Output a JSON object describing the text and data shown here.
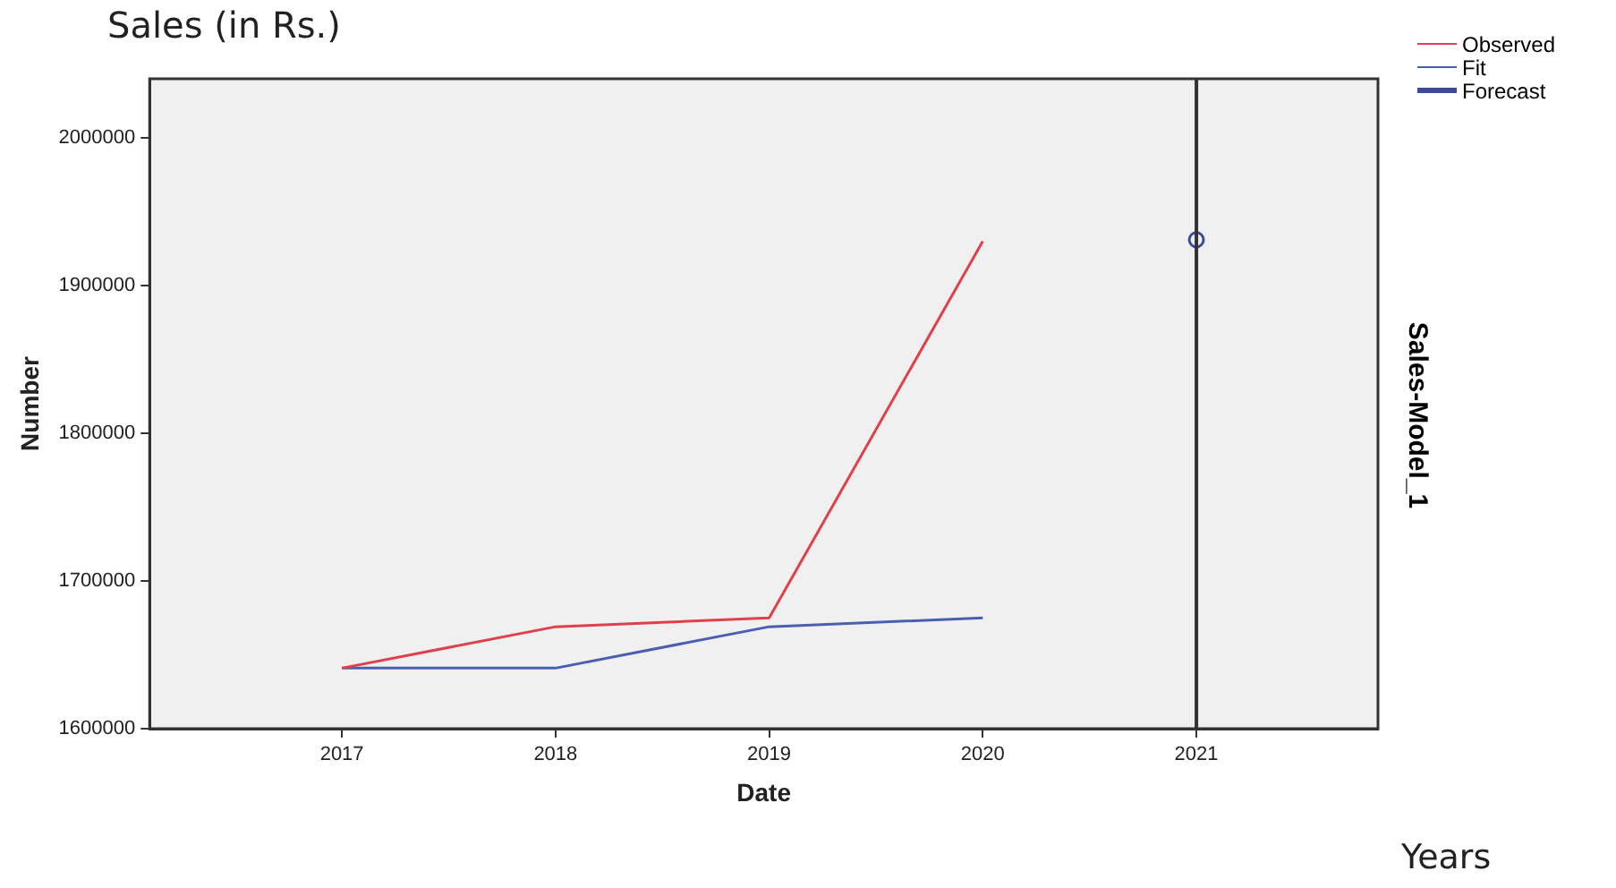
{
  "chart_data": {
    "type": "line",
    "title": "Sales (in Rs.)",
    "xlabel": "Date",
    "ylabel": "Number",
    "y2label": "Sales-Model_1",
    "annotations": [
      "Years"
    ],
    "x": [
      2017,
      2018,
      2019,
      2020
    ],
    "series": [
      {
        "name": "Observed",
        "color": "#e0404a",
        "values": [
          1641000,
          1669000,
          1675000,
          1930000
        ]
      },
      {
        "name": "Fit",
        "color": "#4a5fb0",
        "values": [
          1641000,
          1641000,
          1669000,
          1675000
        ]
      },
      {
        "name": "Forecast",
        "color": "#3b4a9a",
        "type": "scatter",
        "marker": "circle",
        "x": [
          2021
        ],
        "values": [
          1931000
        ]
      }
    ],
    "xlim": [
      2016.1,
      2021.85
    ],
    "xticks": [
      2017,
      2018,
      2019,
      2020,
      2021
    ],
    "ylim": [
      1600000,
      2040000
    ],
    "yticks": [
      1600000,
      1700000,
      1800000,
      1900000,
      2000000
    ],
    "ref_lines": [
      {
        "axis": "x",
        "value": 2021,
        "color": "#333333"
      }
    ],
    "grid": false,
    "legend": "top right"
  }
}
